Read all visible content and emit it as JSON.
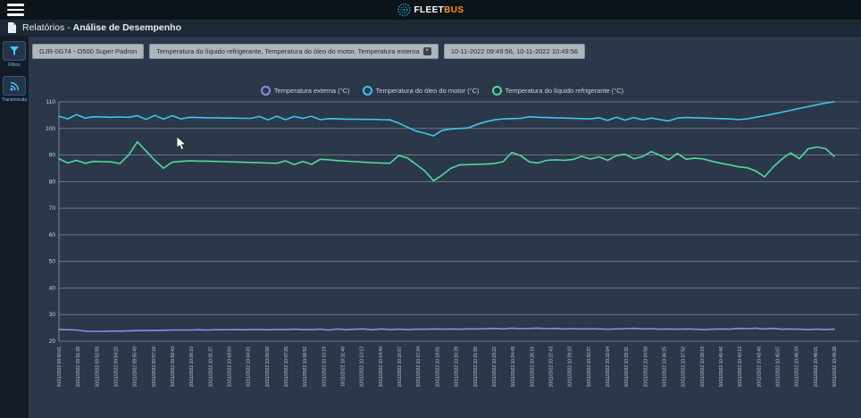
{
  "topbar": {
    "logo_fleet": "FLEET",
    "logo_bus": "BUS"
  },
  "breadcrumb": {
    "section": "Relatórios",
    "separator": " - ",
    "page": "Análise de Desempenho"
  },
  "sidebar": {
    "items": [
      {
        "label": "Filtros",
        "icon": "filter-icon"
      },
      {
        "label": "Transmissão",
        "icon": "broadcast-icon"
      }
    ]
  },
  "filters": {
    "vehicle": "GJR-0G74 - O500 Super Padron",
    "parameters": "Temperatura do líquido refrigerante, Temperatura do óleo do motor, Temperatura externa",
    "close_label": "×",
    "period": "10-11-2022 09:49:56, 10-11-2022 10:49:56"
  },
  "chart_data": {
    "type": "line",
    "title": "",
    "xlabel": "",
    "ylabel": "",
    "ylim": [
      20,
      110
    ],
    "y_ticks": [
      20,
      30,
      40,
      50,
      60,
      70,
      80,
      90,
      100,
      110
    ],
    "grid": true,
    "legend_position": "top",
    "x_tick_labels": [
      "10/11/2022 09:50:01",
      "10/11/2022 09:51:28",
      "10/11/2022 09:52:55",
      "10/11/2022 09:54:22",
      "10/11/2022 09:55:49",
      "10/11/2022 09:57:16",
      "10/11/2022 09:58:43",
      "10/11/2022 10:00:10",
      "10/11/2022 10:01:37",
      "10/11/2022 10:03:04",
      "10/11/2022 10:04:31",
      "10/11/2022 10:05:58",
      "10/11/2022 10:07:25",
      "10/11/2022 10:08:52",
      "10/11/2022 10:10:19",
      "10/11/2022 10:11:46",
      "10/11/2022 10:13:13",
      "10/11/2022 10:14:40",
      "10/11/2022 10:16:07",
      "10/11/2022 10:17:34",
      "10/11/2022 10:19:01",
      "10/11/2022 10:20:28",
      "10/11/2022 10:21:55",
      "10/11/2022 10:23:22",
      "10/11/2022 10:24:49",
      "10/11/2022 10:26:16",
      "10/11/2022 10:27:43",
      "10/11/2022 10:29:10",
      "10/11/2022 10:30:37",
      "10/11/2022 10:32:04",
      "10/11/2022 10:33:31",
      "10/11/2022 10:34:58",
      "10/11/2022 10:36:25",
      "10/11/2022 10:37:52",
      "10/11/2022 10:39:19",
      "10/11/2022 10:40:46",
      "10/11/2022 10:42:13",
      "10/11/2022 10:43:40",
      "10/11/2022 10:45:07",
      "10/11/2022 10:46:34",
      "10/11/2022 10:48:01",
      "10/11/2022 10:49:28"
    ],
    "series": [
      {
        "name": "Temperatura externa (°C)",
        "color": "#8f8be8",
        "values": [
          24.4,
          24.3,
          24.2,
          23.8,
          23.7,
          23.7,
          23.8,
          23.8,
          23.9,
          24.0,
          24.0,
          24.1,
          24.1,
          24.2,
          24.2,
          24.2,
          24.3,
          24.2,
          24.3,
          24.3,
          24.4,
          24.3,
          24.4,
          24.4,
          24.3,
          24.4,
          24.4,
          24.5,
          24.4,
          24.4,
          24.5,
          24.2,
          24.6,
          24.3,
          24.5,
          24.6,
          24.3,
          24.6,
          24.4,
          24.5,
          24.4,
          24.5,
          24.5,
          24.6,
          24.5,
          24.6,
          24.5,
          24.6,
          24.6,
          24.7,
          24.8,
          24.6,
          24.9,
          24.7,
          24.8,
          24.9,
          24.7,
          24.8,
          24.6,
          24.7,
          24.6,
          24.7,
          24.6,
          24.5,
          24.6,
          24.7,
          24.8,
          24.6,
          24.7,
          24.5,
          24.6,
          24.5,
          24.6,
          24.5,
          24.4,
          24.5,
          24.6,
          24.5,
          24.8,
          24.7,
          24.9,
          24.6,
          24.8,
          24.5,
          24.6,
          24.5,
          24.4,
          24.5,
          24.4,
          24.5
        ]
      },
      {
        "name": "Temperatura do óleo do motor (°C)",
        "color": "#41c4ed",
        "values": [
          104.6,
          103.6,
          105.2,
          103.9,
          104.4,
          104.3,
          104.2,
          104.3,
          104.2,
          104.8,
          103.4,
          104.9,
          103.5,
          104.8,
          103.6,
          104.2,
          104.1,
          104.0,
          104.0,
          103.9,
          103.9,
          103.8,
          103.8,
          104.5,
          103.2,
          104.6,
          103.3,
          104.5,
          103.8,
          104.6,
          103.3,
          103.7,
          103.6,
          103.5,
          103.5,
          103.4,
          103.4,
          103.3,
          103.2,
          102.0,
          100.5,
          99.0,
          98.2,
          97.2,
          99.3,
          99.8,
          100.0,
          100.2,
          101.5,
          102.5,
          103.2,
          103.6,
          103.7,
          103.8,
          104.4,
          104.2,
          104.1,
          104.0,
          103.9,
          103.8,
          103.7,
          103.6,
          104.0,
          103.0,
          104.2,
          103.1,
          104.1,
          103.2,
          103.9,
          103.3,
          102.8,
          103.9,
          104.1,
          104.0,
          103.9,
          103.8,
          103.7,
          103.6,
          103.3,
          103.6,
          104.2,
          104.8,
          105.4,
          106.1,
          106.8,
          107.5,
          108.2,
          108.9,
          109.5,
          110.0
        ]
      },
      {
        "name": "Temperatura do líquido refrigerante (°C)",
        "color": "#52d9a0",
        "values": [
          88.6,
          87.0,
          88.0,
          86.9,
          87.6,
          87.5,
          87.4,
          86.8,
          90.0,
          95.0,
          91.5,
          88.0,
          85.0,
          87.3,
          87.6,
          87.8,
          87.7,
          87.7,
          87.6,
          87.5,
          87.4,
          87.3,
          87.2,
          87.1,
          87.0,
          86.9,
          87.8,
          86.4,
          87.6,
          86.5,
          88.4,
          88.2,
          87.9,
          87.7,
          87.5,
          87.3,
          87.1,
          87.0,
          86.9,
          89.8,
          88.9,
          86.5,
          84.0,
          80.3,
          82.5,
          85.0,
          86.3,
          86.4,
          86.5,
          86.6,
          86.8,
          87.5,
          91.0,
          89.8,
          87.4,
          87.0,
          88.0,
          88.2,
          88.0,
          88.3,
          89.5,
          88.5,
          89.3,
          88.0,
          89.8,
          90.3,
          88.6,
          89.4,
          91.3,
          89.9,
          88.2,
          90.6,
          88.4,
          88.8,
          88.5,
          87.6,
          86.9,
          86.3,
          85.6,
          85.2,
          84.0,
          81.8,
          85.5,
          88.5,
          90.8,
          88.6,
          92.3,
          93.0,
          92.4,
          89.5
        ]
      }
    ]
  }
}
